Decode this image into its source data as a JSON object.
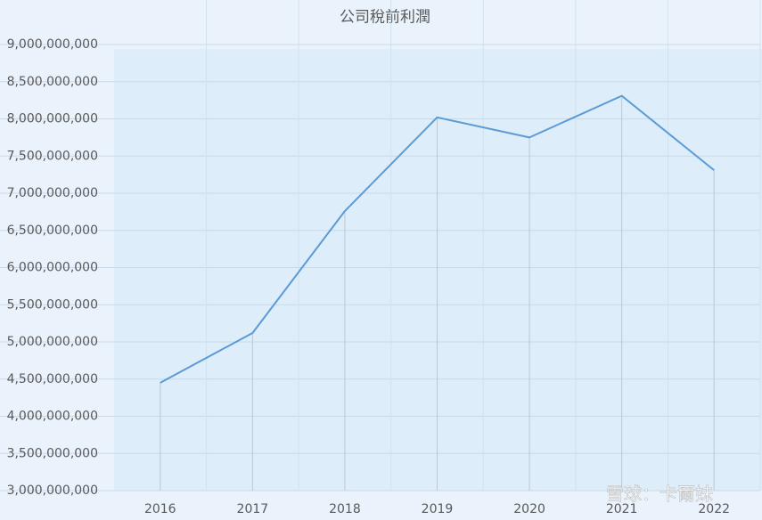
{
  "chart_data": {
    "type": "line",
    "title": "公司稅前利潤",
    "categories": [
      "2016",
      "2017",
      "2018",
      "2019",
      "2020",
      "2021",
      "2022"
    ],
    "series": [
      {
        "name": "稅前利潤",
        "color": "#5b9bd5",
        "values": [
          4450000000,
          5120000000,
          6760000000,
          8020000000,
          7750000000,
          8310000000,
          7310000000
        ]
      }
    ],
    "ylim": [
      3000000000,
      9000000000
    ],
    "yticks": [
      {
        "value": 3000000000,
        "label": "3,000,000,000"
      },
      {
        "value": 3500000000,
        "label": "3,500,000,000"
      },
      {
        "value": 4000000000,
        "label": "4,000,000,000"
      },
      {
        "value": 4500000000,
        "label": "4,500,000,000"
      },
      {
        "value": 5000000000,
        "label": "5,000,000,000"
      },
      {
        "value": 5500000000,
        "label": "5,500,000,000"
      },
      {
        "value": 6000000000,
        "label": "6,000,000,000"
      },
      {
        "value": 6500000000,
        "label": "6,500,000,000"
      },
      {
        "value": 7000000000,
        "label": "7,000,000,000"
      },
      {
        "value": 7500000000,
        "label": "7,500,000,000"
      },
      {
        "value": 8000000000,
        "label": "8,000,000,000"
      },
      {
        "value": 8500000000,
        "label": "8,500,000,000"
      },
      {
        "value": 9000000000,
        "label": "9,000,000,000"
      }
    ],
    "grid": true,
    "drop_lines": true,
    "watermark": "雪球：卡爾妹"
  }
}
